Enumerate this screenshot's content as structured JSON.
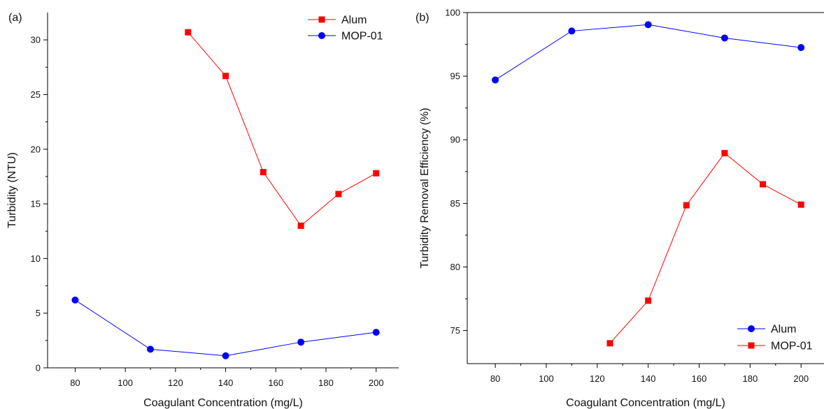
{
  "chart_data": [
    {
      "type": "line",
      "panel_label": "(a)",
      "xlabel": "Coagulant Concentration (mg/L)",
      "ylabel": "Turbidity (NTU)",
      "xlim": [
        69,
        209
      ],
      "ylim": [
        0,
        32.5
      ],
      "xticks": [
        80,
        100,
        120,
        140,
        160,
        180,
        200
      ],
      "yticks": [
        0,
        5,
        10,
        15,
        20,
        25,
        30
      ],
      "grid": false,
      "legend_position": "top-right",
      "series": [
        {
          "name": "Alum",
          "color": "#ff0000",
          "marker": "square",
          "x": [
            125,
            140,
            155,
            170,
            185,
            200
          ],
          "y": [
            30.7,
            26.7,
            17.9,
            13.0,
            15.9,
            17.8
          ]
        },
        {
          "name": "MOP-01",
          "color": "#0000ff",
          "marker": "circle",
          "x": [
            80,
            110,
            140,
            170,
            200
          ],
          "y": [
            6.2,
            1.7,
            1.1,
            2.35,
            3.25
          ]
        }
      ]
    },
    {
      "type": "line",
      "panel_label": "(b)",
      "xlabel": "Coagulant Concentration (mg/L)",
      "ylabel": "Turbidity Removal Efficiency (%)",
      "xlim": [
        69,
        209
      ],
      "ylim": [
        72.4,
        100
      ],
      "xticks": [
        80,
        100,
        120,
        140,
        160,
        180,
        200
      ],
      "yticks": [
        75,
        80,
        85,
        90,
        95,
        100
      ],
      "grid": false,
      "legend_position": "bottom-right",
      "series": [
        {
          "name": "Alum",
          "color": "#0000ff",
          "marker": "circle",
          "x": [
            80,
            110,
            140,
            170,
            200
          ],
          "y": [
            94.7,
            98.55,
            99.05,
            98.0,
            97.25
          ]
        },
        {
          "name": "MOP-01",
          "color": "#ff0000",
          "marker": "square",
          "x": [
            125,
            140,
            155,
            170,
            185,
            200
          ],
          "y": [
            74.0,
            77.35,
            84.85,
            88.95,
            86.5,
            84.9
          ]
        }
      ]
    }
  ]
}
